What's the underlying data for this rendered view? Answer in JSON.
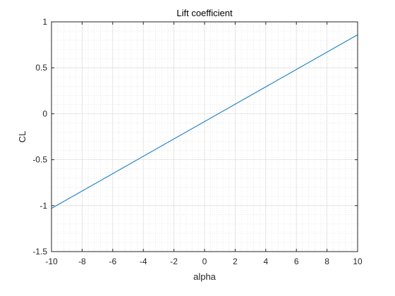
{
  "chart_data": {
    "type": "line",
    "title": "Lift coefficient",
    "xlabel": "alpha",
    "ylabel": "CL",
    "xlim": [
      -10,
      10
    ],
    "ylim": [
      -1.5,
      1
    ],
    "xticks": [
      -10,
      -8,
      -6,
      -4,
      -2,
      0,
      2,
      4,
      6,
      8,
      10
    ],
    "yticks": [
      -1.5,
      -1,
      -0.5,
      0,
      0.5,
      1
    ],
    "xtick_labels": [
      "-10",
      "-8",
      "-6",
      "-4",
      "-2",
      "0",
      "2",
      "4",
      "6",
      "8",
      "10"
    ],
    "ytick_labels": [
      "-1.5",
      "-1",
      "-0.5",
      "0",
      "0.5",
      "1"
    ],
    "grid": true,
    "minor_grid": true,
    "series": [
      {
        "x": [
          -10,
          10
        ],
        "y": [
          -1.03,
          0.86
        ],
        "color": "#0072bd"
      }
    ]
  }
}
